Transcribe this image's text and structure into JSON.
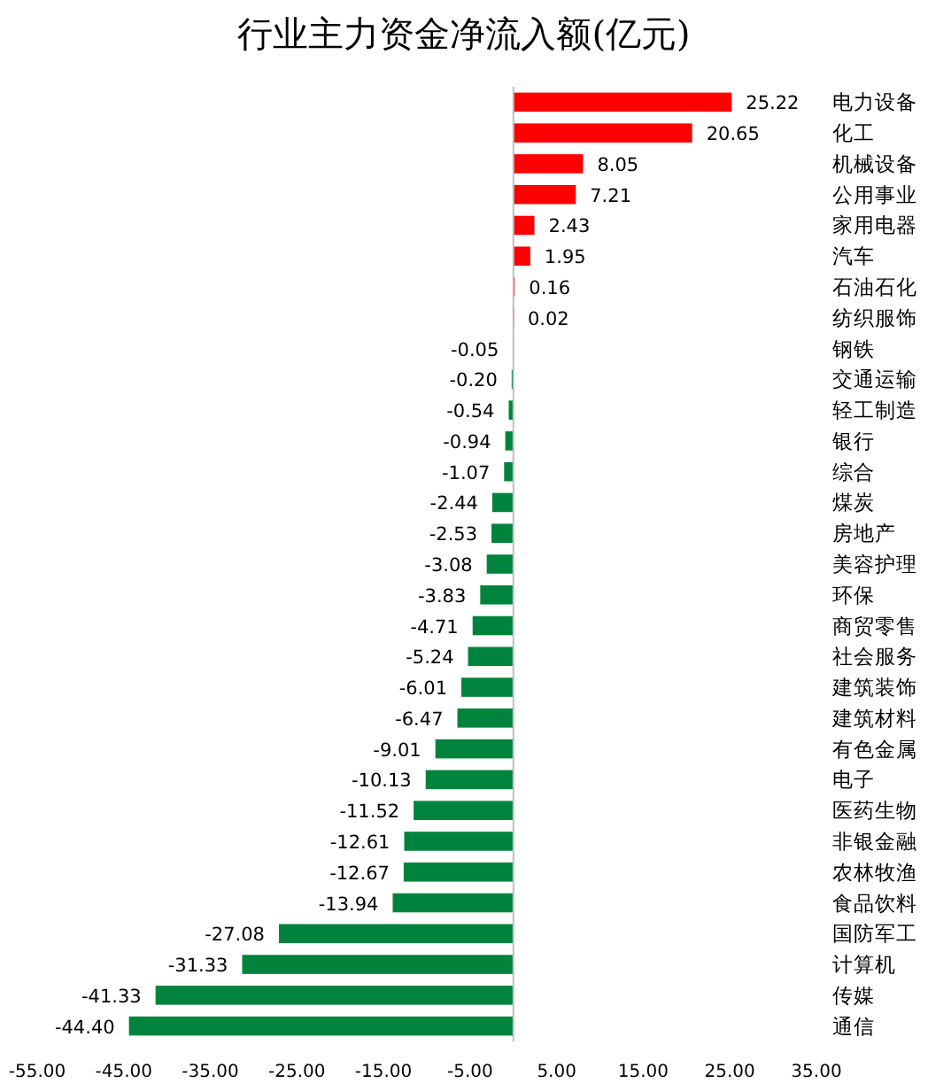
{
  "chart_data": {
    "type": "bar",
    "orientation": "horizontal",
    "title": "行业主力资金净流入额(亿元)",
    "categories": [
      "电力设备",
      "化工",
      "机械设备",
      "公用事业",
      "家用电器",
      "汽车",
      "石油石化",
      "纺织服饰",
      "钢铁",
      "交通运输",
      "轻工制造",
      "银行",
      "综合",
      "煤炭",
      "房地产",
      "美容护理",
      "环保",
      "商贸零售",
      "社会服务",
      "建筑装饰",
      "建筑材料",
      "有色金属",
      "电子",
      "医药生物",
      "非银金融",
      "农林牧渔",
      "食品饮料",
      "国防军工",
      "计算机",
      "传媒",
      "通信"
    ],
    "values": [
      25.22,
      20.65,
      8.05,
      7.21,
      2.43,
      1.95,
      0.16,
      0.02,
      -0.05,
      -0.2,
      -0.54,
      -0.94,
      -1.07,
      -2.44,
      -2.53,
      -3.08,
      -3.83,
      -4.71,
      -5.24,
      -6.01,
      -6.47,
      -9.01,
      -10.13,
      -11.52,
      -12.61,
      -12.67,
      -13.94,
      -27.08,
      -31.33,
      -41.33,
      -44.4
    ],
    "value_labels": [
      "25.22",
      "20.65",
      "8.05",
      "7.21",
      "2.43",
      "1.95",
      "0.16",
      "0.02",
      "-0.05",
      "-0.20",
      "-0.54",
      "-0.94",
      "-1.07",
      "-2.44",
      "-2.53",
      "-3.08",
      "-3.83",
      "-4.71",
      "-5.24",
      "-6.01",
      "-6.47",
      "-9.01",
      "-10.13",
      "-11.52",
      "-12.61",
      "-12.67",
      "-13.94",
      "-27.08",
      "-31.33",
      "-41.33",
      "-44.40"
    ],
    "colors": [
      "#ff0000",
      "#ff0000",
      "#ff0000",
      "#ff0000",
      "#ff0000",
      "#ff0000",
      "#ff0000",
      "#ff0000",
      "#00843d",
      "#00843d",
      "#00843d",
      "#00843d",
      "#00843d",
      "#00843d",
      "#00843d",
      "#00843d",
      "#00843d",
      "#00843d",
      "#00843d",
      "#00843d",
      "#00843d",
      "#00843d",
      "#00843d",
      "#00843d",
      "#00843d",
      "#00843d",
      "#00843d",
      "#00843d",
      "#00843d",
      "#00843d",
      "#00843d"
    ],
    "xlim": [
      -55,
      35
    ],
    "xticks": [
      {
        "value": -55,
        "label": "-55.00"
      },
      {
        "value": -45,
        "label": "-45.00"
      },
      {
        "value": -35,
        "label": "-35.00"
      },
      {
        "value": -25,
        "label": "-25.00"
      },
      {
        "value": -15,
        "label": "-15.00"
      },
      {
        "value": -5,
        "label": "-5.00"
      },
      {
        "value": 5,
        "label": "5.00"
      },
      {
        "value": 15,
        "label": "15.00"
      },
      {
        "value": 25,
        "label": "25.00"
      },
      {
        "value": 35,
        "label": "35.00"
      }
    ]
  }
}
